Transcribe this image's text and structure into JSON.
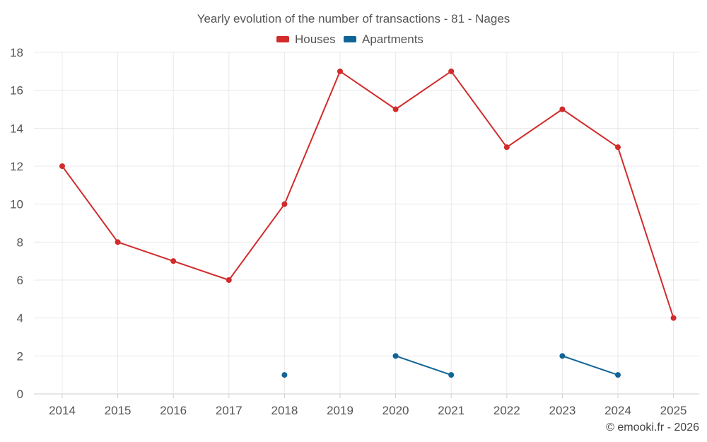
{
  "chart_data": {
    "type": "line",
    "title": "Yearly evolution of the number of transactions - 81 - Nages",
    "xlabel": "",
    "ylabel": "",
    "categories": [
      "2014",
      "2015",
      "2016",
      "2017",
      "2018",
      "2019",
      "2020",
      "2021",
      "2022",
      "2023",
      "2024",
      "2025"
    ],
    "ylim": [
      0,
      18
    ],
    "yticks": [
      0,
      2,
      4,
      6,
      8,
      10,
      12,
      14,
      16,
      18
    ],
    "grid": true,
    "legend_position": "top-center",
    "series": [
      {
        "name": "Houses",
        "color": "#d22b2b",
        "values": [
          12,
          8,
          7,
          6,
          10,
          17,
          15,
          17,
          13,
          15,
          13,
          4
        ]
      },
      {
        "name": "Apartments",
        "color": "#106496",
        "values": [
          null,
          null,
          null,
          null,
          1,
          null,
          2,
          1,
          null,
          2,
          1,
          null
        ]
      }
    ]
  },
  "credit": "© emooki.fr - 2026"
}
